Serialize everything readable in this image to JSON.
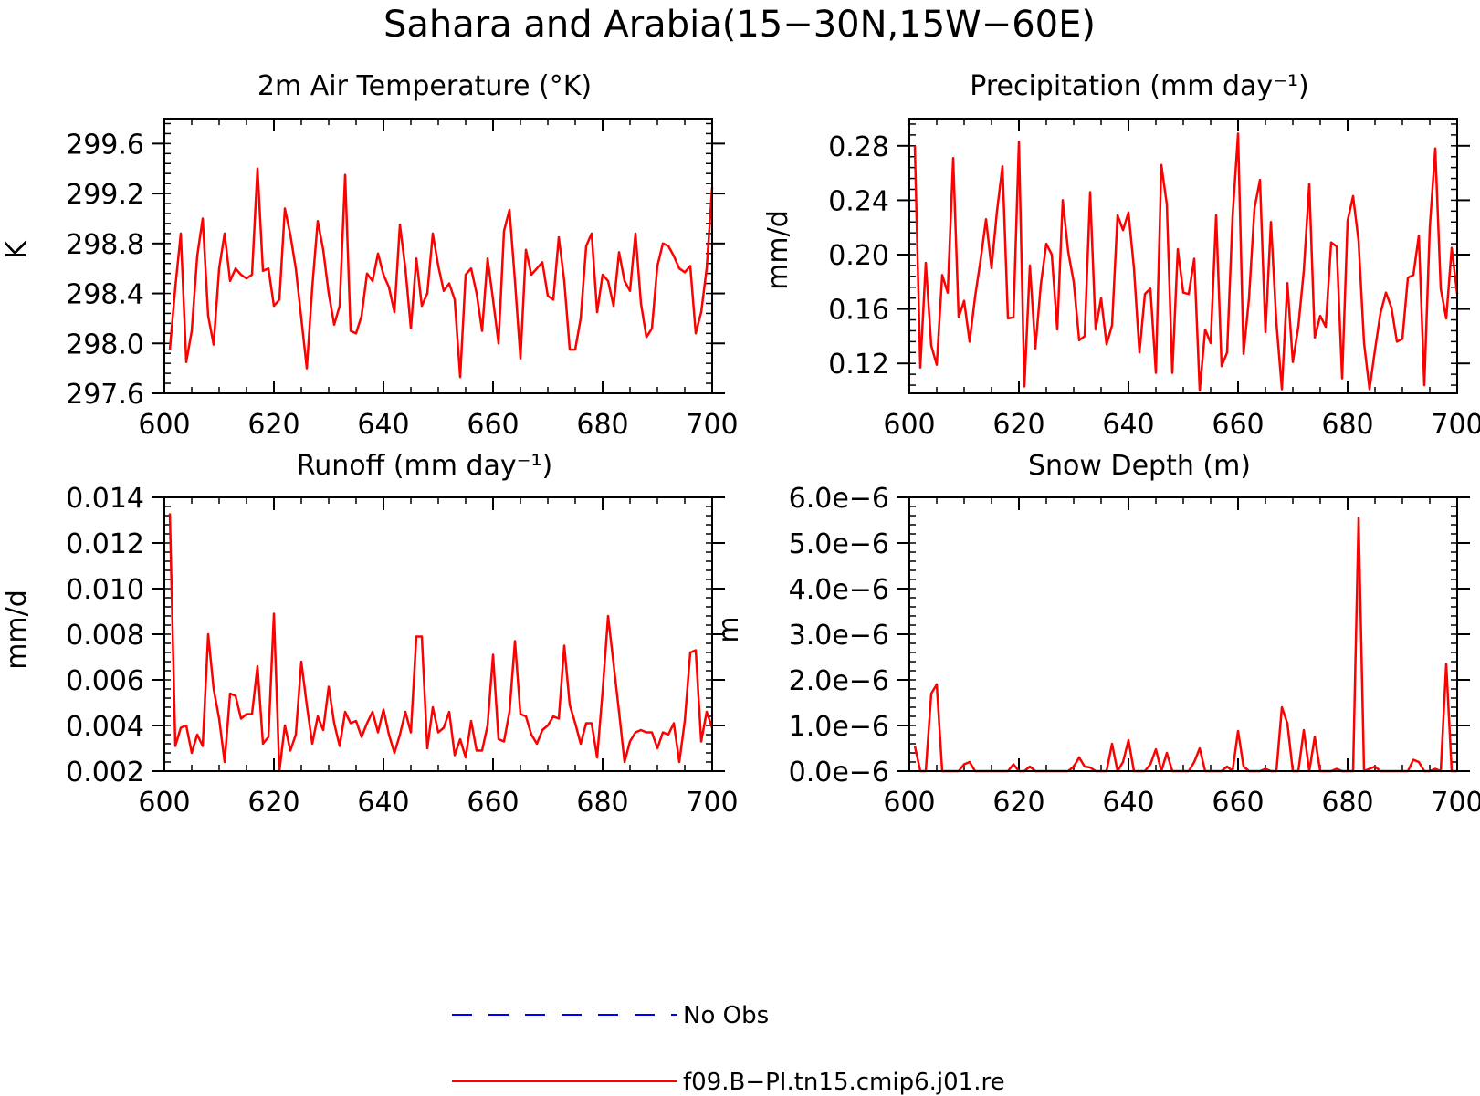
{
  "title": "Sahara and Arabia(15−30N,15W−60E)",
  "colors": {
    "model_line": "#ff0000",
    "obs_line": "#0000ff",
    "axis": "#000000",
    "background": "#ffffff"
  },
  "legend": {
    "placement": "bottom-center",
    "entries": [
      {
        "label": "No Obs",
        "color": "#0000ff",
        "style": "dashed"
      },
      {
        "label": "f09.B−PI.tn15.cmip6.j01.re",
        "color": "#ff0000",
        "style": "solid"
      }
    ]
  },
  "chart_data": [
    {
      "type": "line",
      "title": "2m Air Temperature (°K)",
      "ylabel": "K",
      "xlim": [
        600,
        700
      ],
      "ylim": [
        297.6,
        299.8
      ],
      "xticks": [
        600,
        620,
        640,
        660,
        680,
        700
      ],
      "xtick_labels": [
        "600",
        "620",
        "640",
        "660",
        "680",
        "700"
      ],
      "yticks": [
        297.6,
        298.0,
        298.4,
        298.8,
        299.2,
        299.6
      ],
      "ytick_labels": [
        "297.6",
        "298.0",
        "298.4",
        "298.8",
        "299.2",
        "299.6"
      ],
      "series": [
        {
          "x_start": 601,
          "x_step": 1,
          "values": [
            297.95,
            298.45,
            298.88,
            297.85,
            298.1,
            298.7,
            299.0,
            298.22,
            297.99,
            298.6,
            298.88,
            298.5,
            298.6,
            298.55,
            298.52,
            298.55,
            299.4,
            298.58,
            298.6,
            298.3,
            298.35,
            299.08,
            298.87,
            298.6,
            298.2,
            297.8,
            298.45,
            298.98,
            298.75,
            298.4,
            298.15,
            298.3,
            299.35,
            298.1,
            298.08,
            298.22,
            298.56,
            298.5,
            298.72,
            298.55,
            298.45,
            298.25,
            298.95,
            298.6,
            298.12,
            298.68,
            298.3,
            298.4,
            298.88,
            298.62,
            298.42,
            298.48,
            298.35,
            297.73,
            298.55,
            298.6,
            298.4,
            298.1,
            298.68,
            298.35,
            298.0,
            298.9,
            299.07,
            298.5,
            297.88,
            298.75,
            298.55,
            298.6,
            298.65,
            298.38,
            298.35,
            298.85,
            298.5,
            297.95,
            297.95,
            298.2,
            298.78,
            298.88,
            298.25,
            298.55,
            298.5,
            298.3,
            298.73,
            298.5,
            298.42,
            298.88,
            298.32,
            298.05,
            298.12,
            298.62,
            298.8,
            298.78,
            298.7,
            298.6,
            298.57,
            298.62,
            298.08,
            298.25,
            298.6,
            299.25
          ]
        }
      ]
    },
    {
      "type": "line",
      "title": "Precipitation (mm day⁻¹)",
      "ylabel": "mm/d",
      "xlim": [
        600,
        700
      ],
      "ylim": [
        0.098,
        0.3
      ],
      "xticks": [
        600,
        620,
        640,
        660,
        680,
        700
      ],
      "xtick_labels": [
        "600",
        "620",
        "640",
        "660",
        "680",
        "700"
      ],
      "yticks": [
        0.12,
        0.16,
        0.2,
        0.24,
        0.28
      ],
      "ytick_labels": [
        "0.12",
        "0.16",
        "0.20",
        "0.24",
        "0.28"
      ],
      "series": [
        {
          "x_start": 601,
          "x_step": 1,
          "values": [
            0.28,
            0.117,
            0.194,
            0.133,
            0.119,
            0.185,
            0.172,
            0.271,
            0.154,
            0.166,
            0.136,
            0.169,
            0.196,
            0.226,
            0.19,
            0.232,
            0.265,
            0.153,
            0.154,
            0.283,
            0.103,
            0.192,
            0.131,
            0.178,
            0.208,
            0.2,
            0.145,
            0.24,
            0.202,
            0.18,
            0.137,
            0.14,
            0.246,
            0.145,
            0.168,
            0.134,
            0.148,
            0.229,
            0.218,
            0.231,
            0.19,
            0.128,
            0.171,
            0.175,
            0.113,
            0.266,
            0.237,
            0.113,
            0.204,
            0.172,
            0.171,
            0.197,
            0.1,
            0.145,
            0.135,
            0.229,
            0.118,
            0.128,
            0.228,
            0.289,
            0.127,
            0.168,
            0.234,
            0.255,
            0.143,
            0.224,
            0.15,
            0.101,
            0.179,
            0.121,
            0.147,
            0.188,
            0.252,
            0.139,
            0.155,
            0.147,
            0.209,
            0.206,
            0.109,
            0.225,
            0.243,
            0.21,
            0.135,
            0.101,
            0.13,
            0.157,
            0.172,
            0.161,
            0.136,
            0.138,
            0.183,
            0.185,
            0.214,
            0.104,
            0.22,
            0.278,
            0.175,
            0.153,
            0.205,
            0.171
          ]
        }
      ]
    },
    {
      "type": "line",
      "title": "Runoff (mm day⁻¹)",
      "ylabel": "mm/d",
      "xlim": [
        600,
        700
      ],
      "ylim": [
        0.002,
        0.014
      ],
      "xticks": [
        600,
        620,
        640,
        660,
        680,
        700
      ],
      "xtick_labels": [
        "600",
        "620",
        "640",
        "660",
        "680",
        "700"
      ],
      "yticks": [
        0.002,
        0.004,
        0.006,
        0.008,
        0.01,
        0.012,
        0.014
      ],
      "ytick_labels": [
        "0.002",
        "0.004",
        "0.006",
        "0.008",
        "0.010",
        "0.012",
        "0.014"
      ],
      "series": [
        {
          "x_start": 601,
          "x_step": 1,
          "values": [
            0.0133,
            0.0031,
            0.0039,
            0.004,
            0.0028,
            0.0036,
            0.0031,
            0.008,
            0.0056,
            0.0043,
            0.0024,
            0.0054,
            0.0053,
            0.0043,
            0.0045,
            0.0045,
            0.0066,
            0.0032,
            0.0035,
            0.0089,
            0.002,
            0.004,
            0.0029,
            0.0036,
            0.0068,
            0.0049,
            0.0032,
            0.0044,
            0.0038,
            0.0057,
            0.0041,
            0.0031,
            0.0046,
            0.0041,
            0.0042,
            0.0035,
            0.0041,
            0.0046,
            0.0037,
            0.0047,
            0.0036,
            0.0028,
            0.0036,
            0.0046,
            0.0037,
            0.0079,
            0.0079,
            0.003,
            0.0048,
            0.0037,
            0.0039,
            0.0046,
            0.0027,
            0.0034,
            0.0026,
            0.0042,
            0.0029,
            0.0029,
            0.004,
            0.0071,
            0.0034,
            0.0033,
            0.0046,
            0.0077,
            0.0045,
            0.0044,
            0.0036,
            0.0032,
            0.0038,
            0.004,
            0.0044,
            0.0043,
            0.0075,
            0.0049,
            0.0041,
            0.0032,
            0.0041,
            0.0041,
            0.0026,
            0.0055,
            0.0088,
            0.0067,
            0.0046,
            0.0024,
            0.0033,
            0.0037,
            0.0038,
            0.0037,
            0.0037,
            0.003,
            0.0037,
            0.0036,
            0.0041,
            0.0024,
            0.0042,
            0.0072,
            0.0073,
            0.0033,
            0.0046,
            0.0039
          ]
        }
      ]
    },
    {
      "type": "line",
      "title": "Snow Depth (m)",
      "ylabel": "m",
      "xlim": [
        600,
        700
      ],
      "ylim": [
        0.0,
        6e-06
      ],
      "xticks": [
        600,
        620,
        640,
        660,
        680,
        700
      ],
      "xtick_labels": [
        "600",
        "620",
        "640",
        "660",
        "680",
        "700"
      ],
      "yticks": [
        0.0,
        1e-06,
        2e-06,
        3e-06,
        4e-06,
        5e-06,
        6e-06
      ],
      "ytick_labels": [
        "0.0e−6",
        "1.0e−6",
        "2.0e−6",
        "3.0e−6",
        "4.0e−6",
        "5.0e−6",
        "6.0e−6"
      ],
      "series": [
        {
          "x_start": 601,
          "x_step": 1,
          "values": [
            5.5e-07,
            0.0,
            0.0,
            1.7e-06,
            1.9e-06,
            0.0,
            0.0,
            0.0,
            0.0,
            1.5e-07,
            2e-07,
            0.0,
            0.0,
            0.0,
            0.0,
            0.0,
            0.0,
            0.0,
            1.5e-07,
            0.0,
            0.0,
            1e-07,
            0.0,
            0.0,
            0.0,
            0.0,
            0.0,
            0.0,
            0.0,
            1e-07,
            3e-07,
            1e-07,
            8e-08,
            0.0,
            0.0,
            0.0,
            6e-07,
            0.0,
            2e-07,
            6.8e-07,
            0.0,
            0.0,
            0.0,
            1.5e-07,
            4.8e-07,
            0.0,
            4e-07,
            0.0,
            0.0,
            0.0,
            0.0,
            2e-07,
            5e-07,
            0.0,
            0.0,
            0.0,
            0.0,
            1e-07,
            0.0,
            8.8e-07,
            1e-07,
            0.0,
            0.0,
            0.0,
            5e-08,
            0.0,
            0.0,
            1.4e-06,
            1.05e-06,
            0.0,
            0.0,
            9e-07,
            0.0,
            7.5e-07,
            0.0,
            0.0,
            0.0,
            5e-08,
            0.0,
            0.0,
            0.0,
            5.55e-06,
            0.0,
            5e-08,
            1e-07,
            0.0,
            0.0,
            0.0,
            0.0,
            0.0,
            0.0,
            2.5e-07,
            2e-07,
            0.0,
            0.0,
            5e-08,
            0.0,
            2.35e-06,
            0.0,
            0.0
          ]
        }
      ]
    }
  ]
}
